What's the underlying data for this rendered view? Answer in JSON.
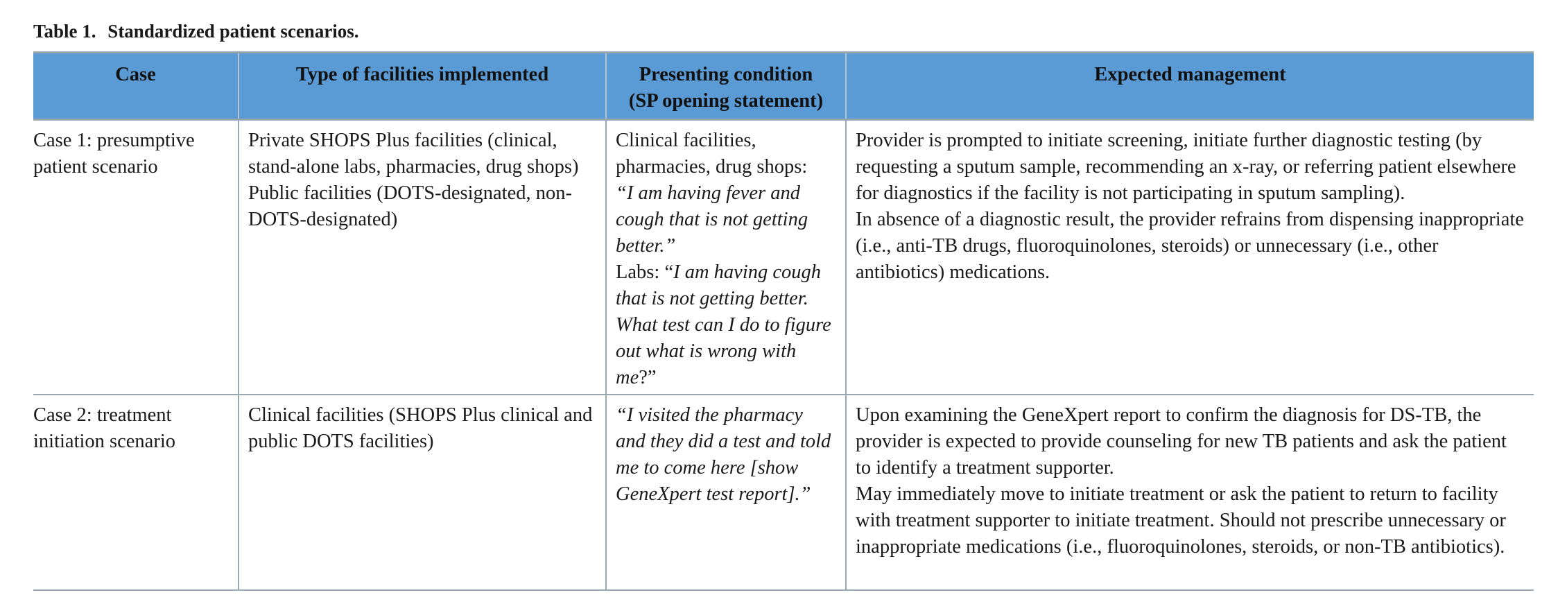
{
  "table": {
    "caption_label": "Table 1.",
    "caption_text": "Standardized patient scenarios.",
    "headers": {
      "case": "Case",
      "facilities": "Type of facilities implemented",
      "condition_line1": "Presenting condition",
      "condition_line2": "(SP opening statement)",
      "management": "Expected management"
    },
    "rows": [
      {
        "case": "Case 1: presumptive patient scenario",
        "facilities_1": "Private SHOPS Plus facilities (clinical, stand-alone labs, pharmacies, drug shops)",
        "facilities_2": "Public facilities (DOTS-designated, non-DOTS-designated)",
        "condition_intro": "Clinical facilities, pharmacies, drug shops:",
        "condition_quote": "“I am having fever and cough that is not getting better.”",
        "condition_labs_prefix": "Labs: “",
        "condition_labs_quote": "I am having cough that is not getting better. What test can I do to figure out what is wrong with me",
        "condition_labs_suffix": "?”",
        "management_1": "Provider is prompted to initiate screening, initiate further diagnostic testing (by requesting a sputum sample, recommending an x-ray, or referring patient elsewhere for diagnostics if the facility is not participating in sputum sampling).",
        "management_2": "In absence of a diagnostic result, the provider refrains from dispensing inappropriate (i.e., anti-TB drugs, fluoroquinolones, steroids) or unnecessary (i.e., other antibiotics) medications."
      },
      {
        "case": "Case 2: treatment initiation scenario",
        "facilities_1": "Clinical facilities (SHOPS Plus clinical and public DOTS facilities)",
        "condition_quote": "“I visited the pharmacy and they did a test and told me to come here [show GeneXpert test report].”",
        "management_1": "Upon examining the GeneXpert report to confirm the diagnosis for DS-TB, the provider is expected to provide counseling for new TB patients and ask the patient to identify a treatment supporter.",
        "management_2": "May immediately move to initiate treatment or ask the patient to return to facility with treatment supporter to initiate treatment. Should not prescribe unnecessary or inappropriate medications (i.e., fluoroquinolones, steroids, or non-TB antibiotics)."
      }
    ]
  }
}
